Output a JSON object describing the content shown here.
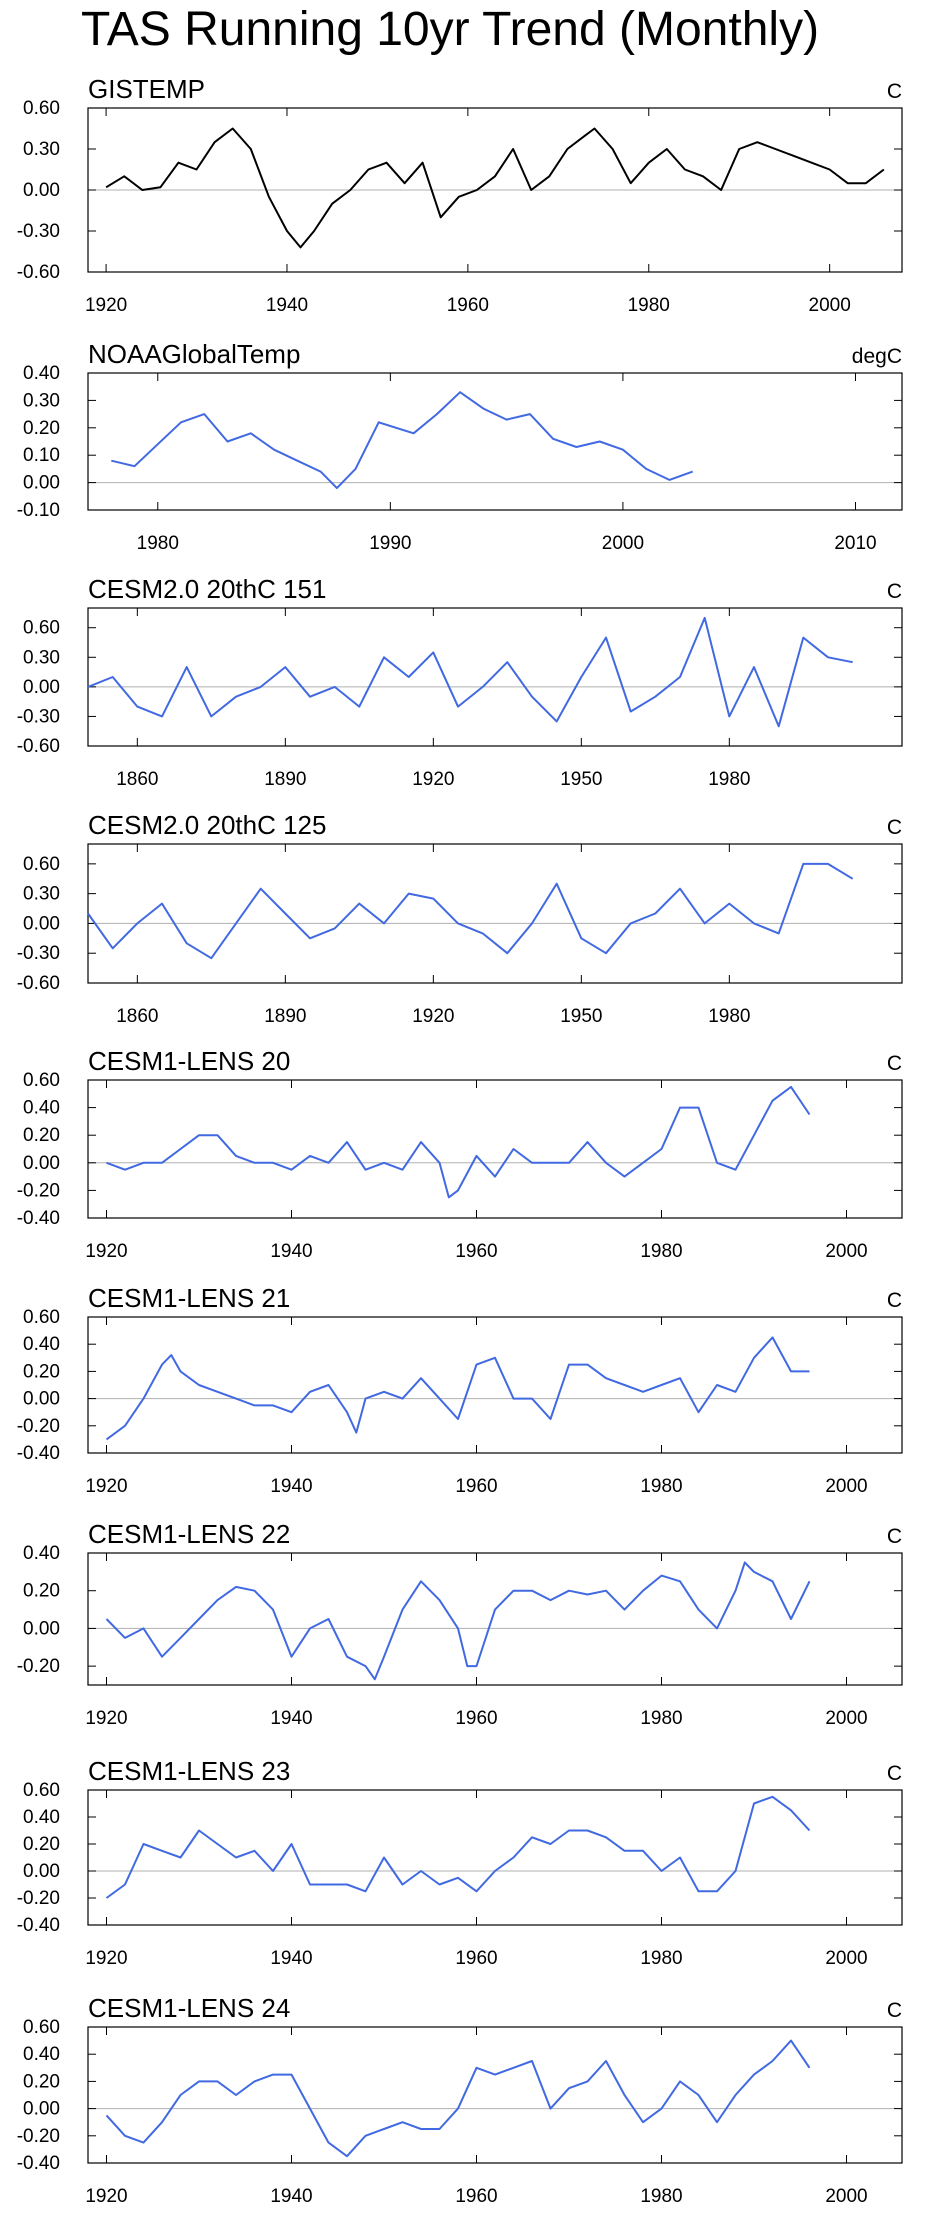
{
  "title": "TAS Running 10yr Trend (Monthly)",
  "colors": {
    "obs": "#000000",
    "model": "#4169E1",
    "axis": "#000000",
    "zero": "#b0b0b0"
  },
  "chart_data": [
    {
      "type": "line",
      "title": "GISTEMP",
      "units": "C",
      "color": "#000000",
      "xlim": [
        1918,
        2008
      ],
      "xticks": [
        1920,
        1940,
        1960,
        1980,
        2000
      ],
      "ylim": [
        -0.6,
        0.6
      ],
      "yticks": [
        "0.60",
        "0.30",
        "0.00",
        "-0.30",
        "-0.60"
      ],
      "x": [
        1920,
        1922,
        1924,
        1926,
        1928,
        1930,
        1932,
        1934,
        1936,
        1938,
        1940,
        1941.5,
        1943,
        1945,
        1947,
        1949,
        1951,
        1953,
        1955,
        1957,
        1959,
        1961,
        1963,
        1965,
        1967,
        1969,
        1971,
        1973,
        1974,
        1976,
        1978,
        1980,
        1982,
        1984,
        1986,
        1988,
        1990,
        1992,
        1994,
        1996,
        1998,
        2000,
        2002,
        2004,
        2006
      ],
      "y": [
        0.02,
        0.1,
        0.0,
        0.02,
        0.2,
        0.15,
        0.35,
        0.45,
        0.3,
        -0.05,
        -0.3,
        -0.42,
        -0.3,
        -0.1,
        0.0,
        0.15,
        0.2,
        0.05,
        0.2,
        -0.2,
        -0.05,
        0.0,
        0.1,
        0.3,
        0.0,
        0.1,
        0.3,
        0.4,
        0.45,
        0.3,
        0.05,
        0.2,
        0.3,
        0.15,
        0.1,
        0.0,
        0.3,
        0.35,
        0.3,
        0.25,
        0.2,
        0.15,
        0.05,
        0.05,
        0.15
      ]
    },
    {
      "type": "line",
      "title": "NOAAGlobalTemp",
      "units": "degC",
      "color": "#4169E1",
      "xlim": [
        1977,
        2012
      ],
      "xticks": [
        1980,
        1990,
        2000,
        2010
      ],
      "ylim": [
        -0.1,
        0.4
      ],
      "yticks": [
        "0.40",
        "0.30",
        "0.20",
        "0.10",
        "0.00",
        "-0.10"
      ],
      "x": [
        1978,
        1979,
        1980,
        1981,
        1982,
        1983,
        1984,
        1985,
        1986,
        1987,
        1987.7,
        1988.5,
        1989.5,
        1991,
        1992,
        1993,
        1994,
        1995,
        1996,
        1997,
        1998,
        1999,
        2000,
        2001,
        2002,
        2003
      ],
      "y": [
        0.08,
        0.06,
        0.14,
        0.22,
        0.25,
        0.15,
        0.18,
        0.12,
        0.08,
        0.04,
        -0.02,
        0.05,
        0.22,
        0.18,
        0.25,
        0.33,
        0.27,
        0.23,
        0.25,
        0.16,
        0.13,
        0.15,
        0.12,
        0.05,
        0.01,
        0.04
      ]
    },
    {
      "type": "line",
      "title": "CESM2.0 20thC 151",
      "units": "C",
      "color": "#4169E1",
      "xlim": [
        1850,
        2015
      ],
      "xticks": [
        1860,
        1890,
        1920,
        1950,
        1980
      ],
      "ylim": [
        -0.6,
        0.8
      ],
      "yticks": [
        "0.60",
        "0.30",
        "0.00",
        "-0.30",
        "-0.60"
      ],
      "x": [
        1850,
        1855,
        1860,
        1865,
        1870,
        1875,
        1880,
        1885,
        1890,
        1895,
        1900,
        1905,
        1910,
        1915,
        1920,
        1925,
        1930,
        1935,
        1940,
        1945,
        1950,
        1955,
        1960,
        1965,
        1970,
        1975,
        1980,
        1985,
        1990,
        1995,
        2000,
        2005
      ],
      "y": [
        0.0,
        0.1,
        -0.2,
        -0.3,
        0.2,
        -0.3,
        -0.1,
        0.0,
        0.2,
        -0.1,
        0.0,
        -0.2,
        0.3,
        0.1,
        0.35,
        -0.2,
        0.0,
        0.25,
        -0.1,
        -0.35,
        0.1,
        0.5,
        -0.25,
        -0.1,
        0.1,
        0.7,
        -0.3,
        0.2,
        -0.4,
        0.5,
        0.3,
        0.25
      ]
    },
    {
      "type": "line",
      "title": "CESM2.0 20thC 125",
      "units": "C",
      "color": "#4169E1",
      "xlim": [
        1850,
        2015
      ],
      "xticks": [
        1860,
        1890,
        1920,
        1950,
        1980
      ],
      "ylim": [
        -0.6,
        0.8
      ],
      "yticks": [
        "0.60",
        "0.30",
        "0.00",
        "-0.30",
        "-0.60"
      ],
      "x": [
        1850,
        1855,
        1860,
        1865,
        1870,
        1875,
        1880,
        1885,
        1890,
        1895,
        1900,
        1905,
        1910,
        1915,
        1920,
        1925,
        1930,
        1935,
        1940,
        1945,
        1950,
        1955,
        1960,
        1965,
        1970,
        1975,
        1980,
        1985,
        1990,
        1995,
        2000,
        2005
      ],
      "y": [
        0.1,
        -0.25,
        0.0,
        0.2,
        -0.2,
        -0.35,
        0.0,
        0.35,
        0.1,
        -0.15,
        -0.05,
        0.2,
        0.0,
        0.3,
        0.25,
        0.0,
        -0.1,
        -0.3,
        0.0,
        0.4,
        -0.15,
        -0.3,
        0.0,
        0.1,
        0.35,
        0.0,
        0.2,
        0.0,
        -0.1,
        0.6,
        0.6,
        0.45
      ]
    },
    {
      "type": "line",
      "title": "CESM1-LENS 20",
      "units": "C",
      "color": "#4169E1",
      "xlim": [
        1918,
        2006
      ],
      "xticks": [
        1920,
        1940,
        1960,
        1980,
        2000
      ],
      "ylim": [
        -0.4,
        0.6
      ],
      "yticks": [
        "0.60",
        "0.40",
        "0.20",
        "0.00",
        "-0.20",
        "-0.40"
      ],
      "x": [
        1920,
        1922,
        1924,
        1926,
        1928,
        1930,
        1932,
        1934,
        1936,
        1938,
        1940,
        1942,
        1944,
        1946,
        1948,
        1950,
        1952,
        1954,
        1956,
        1957,
        1958,
        1960,
        1962,
        1964,
        1966,
        1968,
        1970,
        1972,
        1974,
        1976,
        1978,
        1980,
        1982,
        1984,
        1986,
        1988,
        1990,
        1992,
        1994,
        1996
      ],
      "y": [
        0.0,
        -0.05,
        0.0,
        0.0,
        0.1,
        0.2,
        0.2,
        0.05,
        0.0,
        0.0,
        -0.05,
        0.05,
        0.0,
        0.15,
        -0.05,
        0.0,
        -0.05,
        0.15,
        0.0,
        -0.25,
        -0.2,
        0.05,
        -0.1,
        0.1,
        0.0,
        0.0,
        0.0,
        0.15,
        0.0,
        -0.1,
        0.0,
        0.1,
        0.4,
        0.4,
        0.0,
        -0.05,
        0.2,
        0.45,
        0.55,
        0.35
      ]
    },
    {
      "type": "line",
      "title": "CESM1-LENS 21",
      "units": "C",
      "color": "#4169E1",
      "xlim": [
        1918,
        2006
      ],
      "xticks": [
        1920,
        1940,
        1960,
        1980,
        2000
      ],
      "ylim": [
        -0.4,
        0.6
      ],
      "yticks": [
        "0.60",
        "0.40",
        "0.20",
        "0.00",
        "-0.20",
        "-0.40"
      ],
      "x": [
        1920,
        1922,
        1924,
        1926,
        1927,
        1928,
        1930,
        1932,
        1934,
        1936,
        1938,
        1940,
        1942,
        1944,
        1946,
        1947,
        1948,
        1950,
        1952,
        1954,
        1956,
        1958,
        1960,
        1962,
        1964,
        1966,
        1968,
        1970,
        1972,
        1974,
        1976,
        1978,
        1980,
        1982,
        1984,
        1986,
        1988,
        1990,
        1992,
        1994,
        1996
      ],
      "y": [
        -0.3,
        -0.2,
        0.0,
        0.25,
        0.32,
        0.2,
        0.1,
        0.05,
        0.0,
        -0.05,
        -0.05,
        -0.1,
        0.05,
        0.1,
        -0.1,
        -0.25,
        0.0,
        0.05,
        0.0,
        0.15,
        0.0,
        -0.15,
        0.25,
        0.3,
        0.0,
        0.0,
        -0.15,
        0.25,
        0.25,
        0.15,
        0.1,
        0.05,
        0.1,
        0.15,
        -0.1,
        0.1,
        0.05,
        0.3,
        0.45,
        0.2,
        0.2
      ]
    },
    {
      "type": "line",
      "title": "CESM1-LENS 22",
      "units": "C",
      "color": "#4169E1",
      "xlim": [
        1918,
        2006
      ],
      "xticks": [
        1920,
        1940,
        1960,
        1980,
        2000
      ],
      "ylim": [
        -0.3,
        0.4
      ],
      "yticks": [
        "0.40",
        "0.20",
        "0.00",
        "-0.20"
      ],
      "x": [
        1920,
        1922,
        1924,
        1926,
        1928,
        1930,
        1932,
        1934,
        1936,
        1938,
        1940,
        1942,
        1944,
        1946,
        1948,
        1949,
        1950,
        1952,
        1954,
        1956,
        1958,
        1959,
        1960,
        1962,
        1964,
        1966,
        1968,
        1970,
        1972,
        1974,
        1976,
        1978,
        1980,
        1982,
        1984,
        1986,
        1988,
        1989,
        1990,
        1992,
        1994,
        1996
      ],
      "y": [
        0.05,
        -0.05,
        0.0,
        -0.15,
        -0.05,
        0.05,
        0.15,
        0.22,
        0.2,
        0.1,
        -0.15,
        0.0,
        0.05,
        -0.15,
        -0.2,
        -0.27,
        -0.15,
        0.1,
        0.25,
        0.15,
        0.0,
        -0.2,
        -0.2,
        0.1,
        0.2,
        0.2,
        0.15,
        0.2,
        0.18,
        0.2,
        0.1,
        0.2,
        0.28,
        0.25,
        0.1,
        0.0,
        0.2,
        0.35,
        0.3,
        0.25,
        0.05,
        0.25
      ]
    },
    {
      "type": "line",
      "title": "CESM1-LENS 23",
      "units": "C",
      "color": "#4169E1",
      "xlim": [
        1918,
        2006
      ],
      "xticks": [
        1920,
        1940,
        1960,
        1980,
        2000
      ],
      "ylim": [
        -0.4,
        0.6
      ],
      "yticks": [
        "0.60",
        "0.40",
        "0.20",
        "0.00",
        "-0.20",
        "-0.40"
      ],
      "x": [
        1920,
        1922,
        1924,
        1926,
        1928,
        1930,
        1932,
        1934,
        1936,
        1938,
        1940,
        1942,
        1944,
        1946,
        1948,
        1950,
        1952,
        1954,
        1956,
        1958,
        1960,
        1962,
        1964,
        1966,
        1968,
        1970,
        1972,
        1974,
        1976,
        1978,
        1980,
        1982,
        1984,
        1986,
        1988,
        1990,
        1992,
        1994,
        1996
      ],
      "y": [
        -0.2,
        -0.1,
        0.2,
        0.15,
        0.1,
        0.3,
        0.2,
        0.1,
        0.15,
        0.0,
        0.2,
        -0.1,
        -0.1,
        -0.1,
        -0.15,
        0.1,
        -0.1,
        0.0,
        -0.1,
        -0.05,
        -0.15,
        0.0,
        0.1,
        0.25,
        0.2,
        0.3,
        0.3,
        0.25,
        0.15,
        0.15,
        0.0,
        0.1,
        -0.15,
        -0.15,
        0.0,
        0.5,
        0.55,
        0.45,
        0.3
      ]
    },
    {
      "type": "line",
      "title": "CESM1-LENS 24",
      "units": "C",
      "color": "#4169E1",
      "xlim": [
        1918,
        2006
      ],
      "xticks": [
        1920,
        1940,
        1960,
        1980,
        2000
      ],
      "ylim": [
        -0.4,
        0.6
      ],
      "yticks": [
        "0.60",
        "0.40",
        "0.20",
        "0.00",
        "-0.20",
        "-0.40"
      ],
      "x": [
        1920,
        1922,
        1924,
        1926,
        1928,
        1930,
        1932,
        1934,
        1936,
        1938,
        1940,
        1942,
        1944,
        1946,
        1948,
        1950,
        1952,
        1954,
        1956,
        1958,
        1960,
        1962,
        1964,
        1966,
        1968,
        1970,
        1972,
        1974,
        1976,
        1978,
        1980,
        1982,
        1984,
        1986,
        1988,
        1990,
        1992,
        1994,
        1996
      ],
      "y": [
        -0.05,
        -0.2,
        -0.25,
        -0.1,
        0.1,
        0.2,
        0.2,
        0.1,
        0.2,
        0.25,
        0.25,
        0.0,
        -0.25,
        -0.35,
        -0.2,
        -0.15,
        -0.1,
        -0.15,
        -0.15,
        0.0,
        0.3,
        0.25,
        0.3,
        0.35,
        0.0,
        0.15,
        0.2,
        0.35,
        0.1,
        -0.1,
        0.0,
        0.2,
        0.1,
        -0.1,
        0.1,
        0.25,
        0.35,
        0.5,
        0.3
      ]
    }
  ]
}
